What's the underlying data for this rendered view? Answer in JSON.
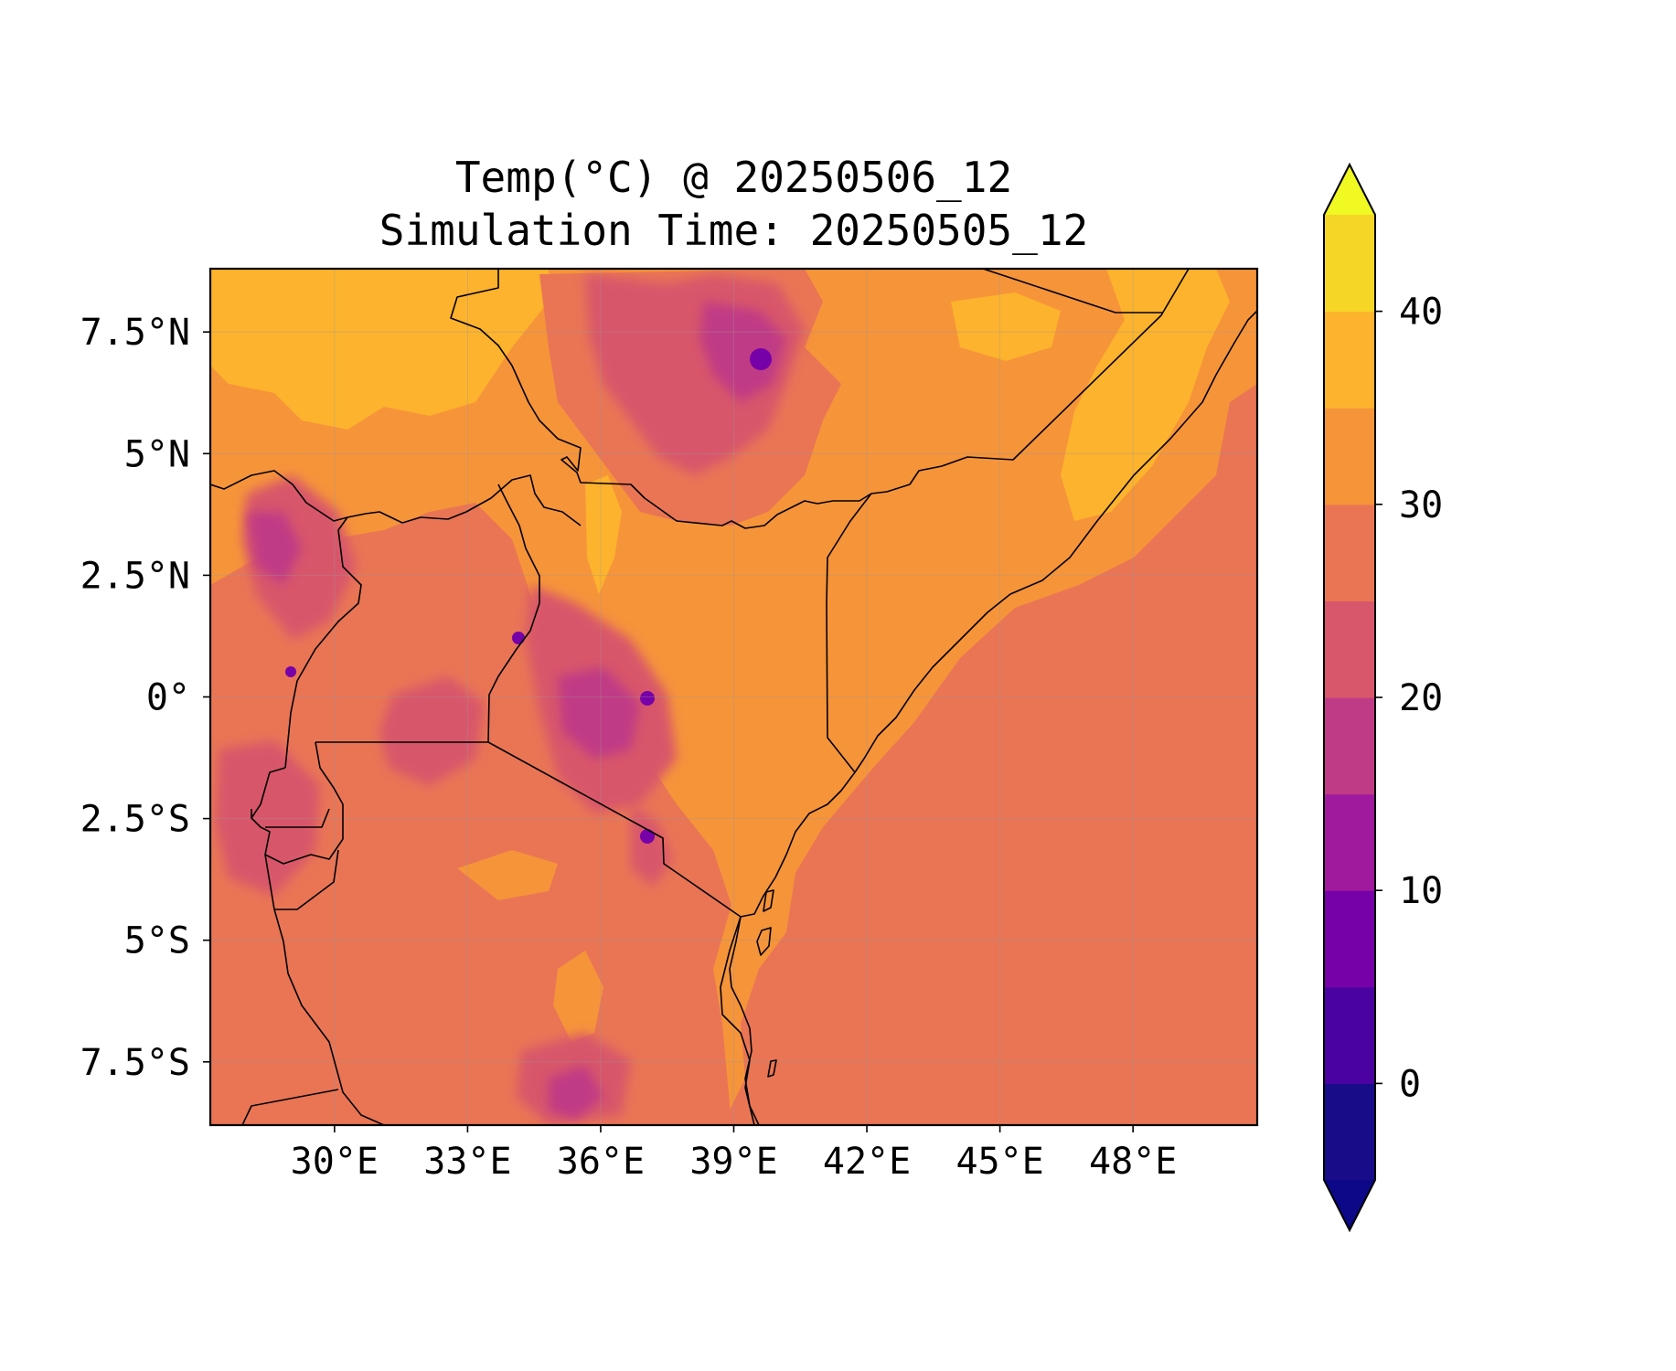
{
  "title": "Temp(°C) @ 20250506_12",
  "subtitle": "Simulation Time: 20250505_12",
  "map": {
    "extent": {
      "lon": [
        27.2,
        50.8
      ],
      "lat": [
        -8.8,
        8.8
      ]
    },
    "x_ticks": [
      {
        "lon": 30,
        "label": "30°E"
      },
      {
        "lon": 33,
        "label": "33°E"
      },
      {
        "lon": 36,
        "label": "36°E"
      },
      {
        "lon": 39,
        "label": "39°E"
      },
      {
        "lon": 42,
        "label": "42°E"
      },
      {
        "lon": 45,
        "label": "45°E"
      },
      {
        "lon": 48,
        "label": "48°E"
      }
    ],
    "y_ticks": [
      {
        "lat": 7.5,
        "label": "7.5°N"
      },
      {
        "lat": 5,
        "label": "5°N"
      },
      {
        "lat": 2.5,
        "label": "2.5°N"
      },
      {
        "lat": 0,
        "label": "0°"
      },
      {
        "lat": -2.5,
        "label": "2.5°S"
      },
      {
        "lat": -5,
        "label": "5°S"
      },
      {
        "lat": -7.5,
        "label": "7.5°S"
      }
    ],
    "gridlines": true
  },
  "colorbar": {
    "levels": [
      -5,
      0,
      5,
      10,
      15,
      20,
      25,
      30,
      35,
      40,
      45
    ],
    "colors": [
      "#180c89",
      "#4a02a0",
      "#7701a8",
      "#9f1a9d",
      "#c03b85",
      "#d8576b",
      "#e97555",
      "#f6943a",
      "#fdb32d",
      "#f5d526"
    ],
    "extend_low_color": "#0d0887",
    "extend_high_color": "#f0f921",
    "ticks": [
      {
        "value": 0,
        "label": "0"
      },
      {
        "value": 10,
        "label": "10"
      },
      {
        "value": 20,
        "label": "20"
      },
      {
        "value": 30,
        "label": "30"
      },
      {
        "value": 40,
        "label": "40"
      }
    ]
  }
}
